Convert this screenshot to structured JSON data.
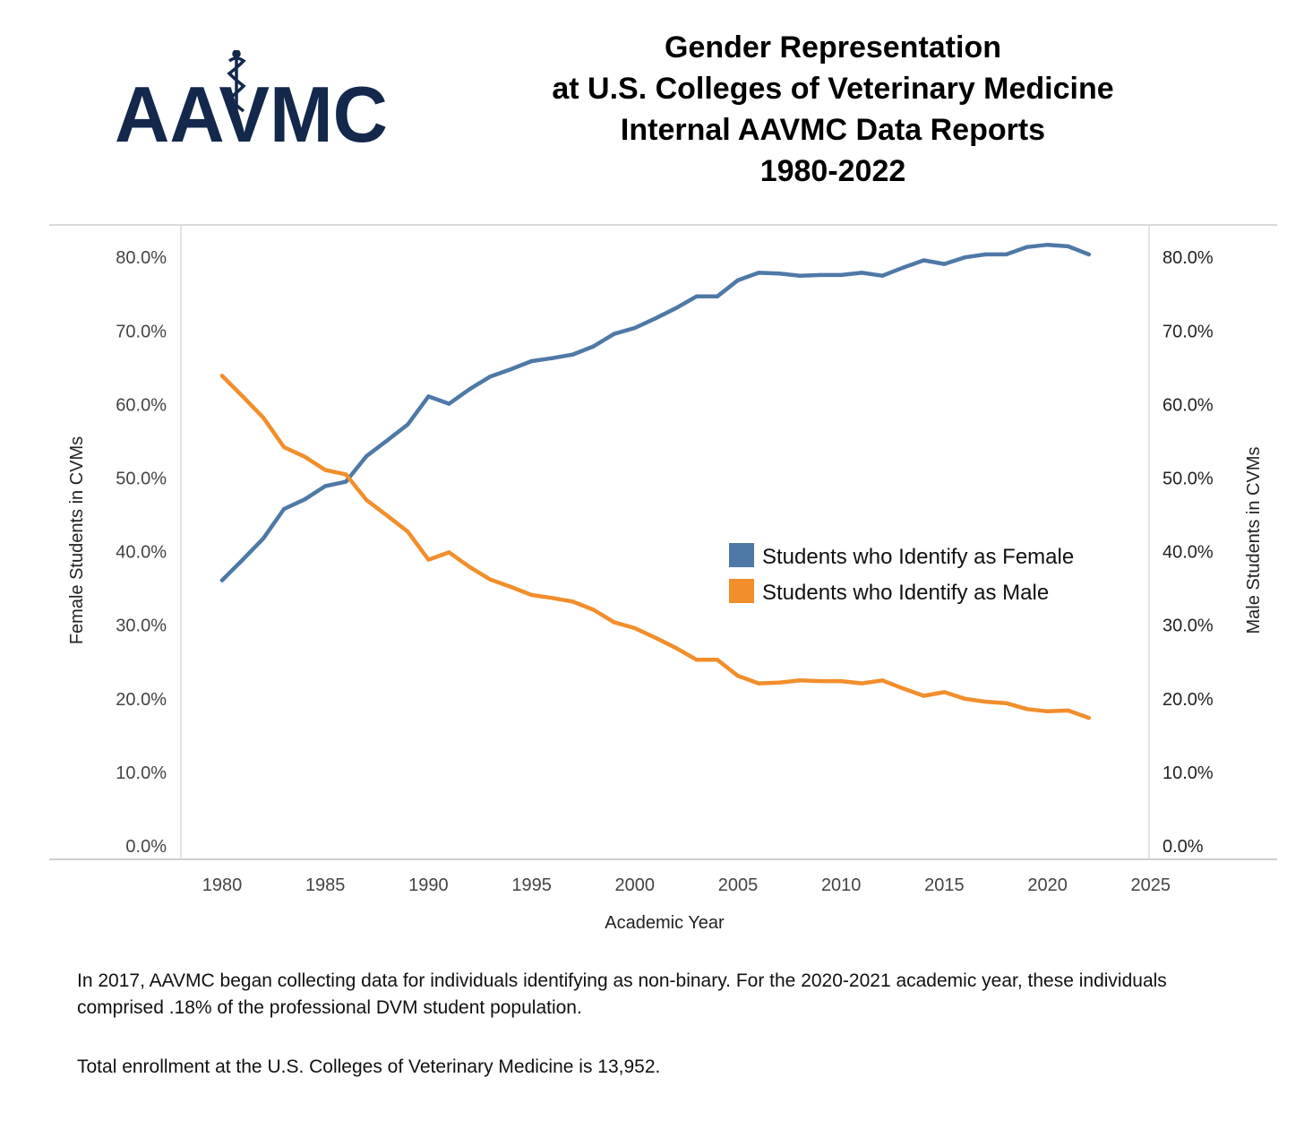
{
  "logo": {
    "text": "AAVMC",
    "color": "#13284b"
  },
  "title_lines": [
    "Gender Representation",
    "at U.S. Colleges of Veterinary Medicine",
    "Internal AAVMC Data Reports",
    "1980-2022"
  ],
  "chart_data": {
    "type": "line",
    "xlabel": "Academic Year",
    "ylabel_left": "Female Students in CVMs",
    "ylabel_right": "Male Students in CVMs",
    "xlim": [
      1976,
      2025
    ],
    "xticks": [
      "1980",
      "1985",
      "1990",
      "1995",
      "2000",
      "2005",
      "2010",
      "2015",
      "2020",
      "2025"
    ],
    "ylim": [
      0,
      85
    ],
    "yticks": [
      "0.0%",
      "10.0%",
      "20.0%",
      "30.0%",
      "40.0%",
      "50.0%",
      "60.0%",
      "70.0%",
      "80.0%"
    ],
    "grid": false,
    "legend_position": "center-right",
    "x": [
      1980,
      1981,
      1982,
      1983,
      1984,
      1985,
      1986,
      1987,
      1988,
      1989,
      1990,
      1991,
      1992,
      1993,
      1994,
      1995,
      1996,
      1997,
      1998,
      1999,
      2000,
      2001,
      2002,
      2003,
      2004,
      2005,
      2006,
      2007,
      2008,
      2009,
      2010,
      2011,
      2012,
      2013,
      2014,
      2015,
      2016,
      2017,
      2018,
      2019,
      2020,
      2021,
      2022
    ],
    "series": [
      {
        "name": "Students who Identify as Female",
        "color": "#4e79a7",
        "values": [
          36.1,
          38.9,
          41.8,
          45.8,
          47.1,
          48.9,
          49.5,
          53.0,
          55.1,
          57.3,
          61.1,
          60.1,
          62.1,
          63.8,
          64.8,
          65.9,
          66.3,
          66.8,
          67.9,
          69.6,
          70.4,
          71.7,
          73.1,
          74.7,
          74.7,
          76.9,
          77.9,
          77.8,
          77.5,
          77.6,
          77.6,
          77.9,
          77.5,
          78.6,
          79.6,
          79.1,
          80.0,
          80.4,
          80.4,
          81.4,
          81.7,
          81.5,
          80.4
        ]
      },
      {
        "name": "Students who Identify as Male",
        "color": "#f28e2b",
        "values": [
          63.9,
          61.1,
          58.2,
          54.2,
          52.9,
          51.1,
          50.5,
          47.0,
          44.9,
          42.7,
          38.9,
          39.9,
          37.9,
          36.2,
          35.2,
          34.1,
          33.7,
          33.2,
          32.1,
          30.4,
          29.6,
          28.3,
          26.9,
          25.3,
          25.3,
          23.1,
          22.1,
          22.2,
          22.5,
          22.4,
          22.4,
          22.1,
          22.5,
          21.4,
          20.4,
          20.9,
          20.0,
          19.6,
          19.4,
          18.6,
          18.3,
          18.4,
          17.4
        ]
      }
    ]
  },
  "notes": [
    "In 2017, AAVMC began collecting data for individuals identifying as non-binary. For the 2020-2021 academic year, these individuals comprised .18% of the professional DVM student population.",
    "Total enrollment at the U.S. Colleges of Veterinary Medicine is 13,952."
  ]
}
